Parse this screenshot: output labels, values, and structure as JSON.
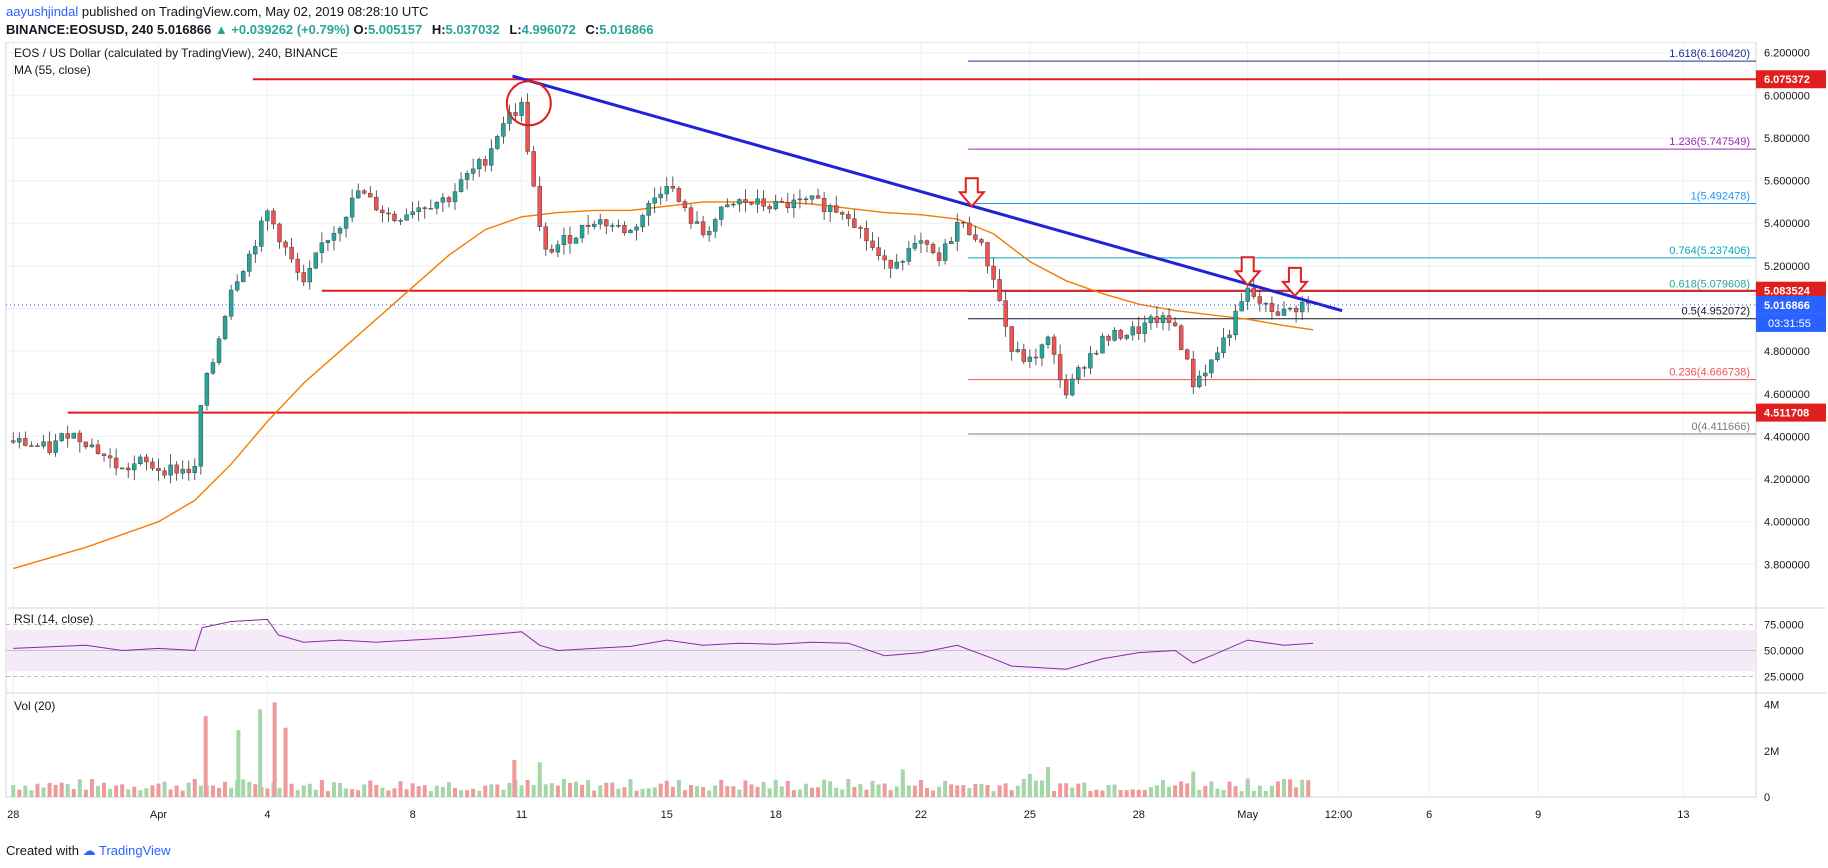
{
  "header": {
    "author": "aayushjindal",
    "published": "published on TradingView.com, May 02, 2019 08:28:10 UTC",
    "symbol_line": "BINANCE:EOSUSD, 240",
    "last": "5.016866",
    "change": "▲ +0.039262 (+0.79%)",
    "o_label": "O:",
    "o_val": "5.005157",
    "h_label": "H:",
    "h_val": "5.037032",
    "l_label": "L:",
    "l_val": "4.996072",
    "c_label": "C:",
    "c_val": "5.016866"
  },
  "footer": {
    "created_with": "Created with",
    "brand": "TradingView"
  },
  "colors": {
    "up": "#26a69a",
    "down": "#ef5350",
    "ma": "#f57c00",
    "trendline": "#1f22d9",
    "support_resistance": "#e01f1f",
    "rsi": "#8e24aa",
    "grid": "#eef0f3"
  },
  "chart_data": {
    "type": "candlestick",
    "title": "EOS / US Dollar (calculated by TradingView), 240, BINANCE",
    "indicator_label": "MA (55, close)",
    "y_axis": {
      "range": [
        3.6,
        6.25
      ],
      "ticks": [
        "6.200000",
        "6.000000",
        "5.800000",
        "5.600000",
        "5.400000",
        "5.200000",
        "5.000000",
        "4.800000",
        "4.600000",
        "4.400000",
        "4.200000",
        "4.000000",
        "3.800000"
      ]
    },
    "x_axis": {
      "ticks": [
        {
          "label": "28",
          "t": 0
        },
        {
          "label": "Apr",
          "t": 4
        },
        {
          "label": "4",
          "t": 7
        },
        {
          "label": "8",
          "t": 11
        },
        {
          "label": "11",
          "t": 14
        },
        {
          "label": "15",
          "t": 18
        },
        {
          "label": "18",
          "t": 21
        },
        {
          "label": "22",
          "t": 25
        },
        {
          "label": "25",
          "t": 28
        },
        {
          "label": "28",
          "t": 31
        },
        {
          "label": "May",
          "t": 34
        },
        {
          "label": "12:00",
          "t": 36.5
        },
        {
          "label": "6",
          "t": 39
        },
        {
          "label": "9",
          "t": 42
        },
        {
          "label": "13",
          "t": 46
        }
      ],
      "day_range": [
        -0.2,
        48.0
      ]
    },
    "price_labels": [
      {
        "value": 6.075372,
        "text": "6.075372",
        "kind": "red"
      },
      {
        "value": 5.083524,
        "text": "5.083524",
        "kind": "red"
      },
      {
        "value": 5.016866,
        "text": "5.016866",
        "kind": "last"
      },
      {
        "value": 4.511708,
        "text": "4.511708",
        "kind": "red"
      }
    ],
    "countdown": "03:31:55",
    "horizontal_levels": [
      {
        "value": 6.075372,
        "from_t": 6.6,
        "to_t": 48.0
      },
      {
        "value": 5.083524,
        "from_t": 8.5,
        "to_t": 48.0
      },
      {
        "value": 4.511708,
        "from_t": 1.5,
        "to_t": 48.0
      }
    ],
    "trendline": {
      "from": {
        "t": 13.75,
        "v": 6.09
      },
      "to": {
        "t": 36.6,
        "v": 4.99
      }
    },
    "high_marker": {
      "t": 14.2,
      "v": 6.0,
      "label": "circle at swing high 6.09"
    },
    "resistance_arrows": [
      {
        "t": 26.4,
        "v": 5.47
      },
      {
        "t": 34.0,
        "v": 5.1
      },
      {
        "t": 35.3,
        "v": 5.05
      }
    ],
    "fibonacci": {
      "from_t": 26.3,
      "to_t": 48.0,
      "levels": [
        {
          "ratio": "1.618",
          "value": 6.16042,
          "text": "1.618(6.160420)",
          "color": "#1e2f97"
        },
        {
          "ratio": "1.236",
          "value": 5.747549,
          "text": "1.236(5.747549)",
          "color": "#9c27b0"
        },
        {
          "ratio": "1",
          "value": 5.492478,
          "text": "1(5.492478)",
          "color": "#2196f3"
        },
        {
          "ratio": "0.764",
          "value": 5.237406,
          "text": "0.764(5.237406)",
          "color": "#00acc1"
        },
        {
          "ratio": "0.618",
          "value": 5.079608,
          "text": "0.618(5.079608)",
          "color": "#26a69a"
        },
        {
          "ratio": "0.5",
          "value": 4.952072,
          "text": "0.5(4.952072)",
          "color": "#131722"
        },
        {
          "ratio": "0.236",
          "value": 4.666738,
          "text": "0.236(4.666738)",
          "color": "#ef5350"
        },
        {
          "ratio": "0",
          "value": 4.411666,
          "text": "0(4.411666)",
          "color": "#787b86"
        }
      ]
    },
    "price_path": [
      [
        0,
        4.38
      ],
      [
        1,
        4.34
      ],
      [
        1.5,
        4.42
      ],
      [
        2,
        4.38
      ],
      [
        3,
        4.24
      ],
      [
        3.5,
        4.28
      ],
      [
        4,
        4.25
      ],
      [
        5,
        4.24
      ],
      [
        5.2,
        4.6
      ],
      [
        5.5,
        4.75
      ],
      [
        6,
        5.1
      ],
      [
        6.5,
        5.25
      ],
      [
        7,
        5.45
      ],
      [
        7.3,
        5.35
      ],
      [
        8,
        5.1
      ],
      [
        8.5,
        5.3
      ],
      [
        9,
        5.4
      ],
      [
        9.5,
        5.55
      ],
      [
        10,
        5.48
      ],
      [
        10.5,
        5.42
      ],
      [
        11,
        5.47
      ],
      [
        12,
        5.52
      ],
      [
        12.5,
        5.62
      ],
      [
        13,
        5.7
      ],
      [
        13.5,
        5.88
      ],
      [
        14,
        5.95
      ],
      [
        14.3,
        5.6
      ],
      [
        14.6,
        5.25
      ],
      [
        15,
        5.3
      ],
      [
        15.5,
        5.35
      ],
      [
        16,
        5.42
      ],
      [
        17,
        5.36
      ],
      [
        18,
        5.6
      ],
      [
        18.5,
        5.45
      ],
      [
        19,
        5.35
      ],
      [
        19.5,
        5.45
      ],
      [
        20,
        5.5
      ],
      [
        21,
        5.48
      ],
      [
        22,
        5.5
      ],
      [
        23,
        5.45
      ],
      [
        24,
        5.2
      ],
      [
        25,
        5.3
      ],
      [
        25.5,
        5.22
      ],
      [
        26,
        5.4
      ],
      [
        26.5,
        5.35
      ],
      [
        27,
        5.15
      ],
      [
        27.5,
        4.8
      ],
      [
        28,
        4.75
      ],
      [
        28.5,
        4.85
      ],
      [
        29,
        4.6
      ],
      [
        29.5,
        4.75
      ],
      [
        30,
        4.85
      ],
      [
        30.5,
        4.88
      ],
      [
        31,
        4.9
      ],
      [
        31.5,
        4.95
      ],
      [
        32,
        4.92
      ],
      [
        32.5,
        4.65
      ],
      [
        33,
        4.75
      ],
      [
        33.5,
        4.9
      ],
      [
        34,
        5.08
      ],
      [
        34.5,
        5.0
      ],
      [
        35,
        4.98
      ],
      [
        35.5,
        5.02
      ],
      [
        35.8,
        5.017
      ]
    ],
    "ma55_path": [
      [
        0,
        3.78
      ],
      [
        2,
        3.88
      ],
      [
        4,
        4.0
      ],
      [
        5,
        4.1
      ],
      [
        6,
        4.27
      ],
      [
        7,
        4.47
      ],
      [
        8,
        4.65
      ],
      [
        9,
        4.8
      ],
      [
        10,
        4.95
      ],
      [
        11,
        5.1
      ],
      [
        12,
        5.25
      ],
      [
        13,
        5.37
      ],
      [
        14,
        5.43
      ],
      [
        15,
        5.45
      ],
      [
        16,
        5.46
      ],
      [
        17,
        5.46
      ],
      [
        18,
        5.48
      ],
      [
        19,
        5.5
      ],
      [
        20,
        5.5
      ],
      [
        21,
        5.5
      ],
      [
        22,
        5.49
      ],
      [
        23,
        5.47
      ],
      [
        24,
        5.45
      ],
      [
        25,
        5.44
      ],
      [
        26,
        5.42
      ],
      [
        27,
        5.35
      ],
      [
        28,
        5.22
      ],
      [
        29,
        5.13
      ],
      [
        30,
        5.07
      ],
      [
        31,
        5.02
      ],
      [
        32,
        4.99
      ],
      [
        33,
        4.97
      ],
      [
        34,
        4.95
      ],
      [
        35,
        4.92
      ],
      [
        35.8,
        4.9
      ]
    ],
    "rsi": {
      "label": "RSI (14, close)",
      "bands": [
        75,
        50,
        25
      ],
      "tick_labels": [
        "75.0000",
        "50.0000",
        "25.0000"
      ],
      "path": [
        [
          0,
          52
        ],
        [
          2,
          55
        ],
        [
          3,
          50
        ],
        [
          4,
          52
        ],
        [
          5,
          50
        ],
        [
          5.2,
          72
        ],
        [
          6,
          78
        ],
        [
          7,
          80
        ],
        [
          7.3,
          65
        ],
        [
          8,
          58
        ],
        [
          9,
          60
        ],
        [
          10,
          58
        ],
        [
          12,
          62
        ],
        [
          13,
          65
        ],
        [
          14,
          68
        ],
        [
          14.5,
          55
        ],
        [
          15,
          50
        ],
        [
          16,
          52
        ],
        [
          17,
          54
        ],
        [
          18,
          60
        ],
        [
          19,
          55
        ],
        [
          20,
          57
        ],
        [
          21,
          56
        ],
        [
          22,
          58
        ],
        [
          23,
          57
        ],
        [
          24,
          45
        ],
        [
          25,
          48
        ],
        [
          26,
          55
        ],
        [
          27,
          42
        ],
        [
          27.5,
          35
        ],
        [
          28,
          34
        ],
        [
          29,
          32
        ],
        [
          30,
          42
        ],
        [
          31,
          48
        ],
        [
          32,
          50
        ],
        [
          32.5,
          38
        ],
        [
          33,
          45
        ],
        [
          34,
          60
        ],
        [
          35,
          55
        ],
        [
          35.8,
          57
        ]
      ]
    },
    "volume": {
      "label": "Vol (20)",
      "tick_labels": [
        "4M",
        "2M",
        "0"
      ],
      "max": 4.2,
      "spikes": [
        [
          5.3,
          3.5
        ],
        [
          6.2,
          2.9
        ],
        [
          6.8,
          3.8
        ],
        [
          7.2,
          4.1
        ],
        [
          7.5,
          3.0
        ],
        [
          13.8,
          1.6
        ],
        [
          14.5,
          1.5
        ],
        [
          24.5,
          1.2
        ],
        [
          28,
          1.0
        ],
        [
          28.5,
          1.3
        ],
        [
          32.5,
          1.1
        ],
        [
          34,
          0.8
        ]
      ]
    }
  }
}
